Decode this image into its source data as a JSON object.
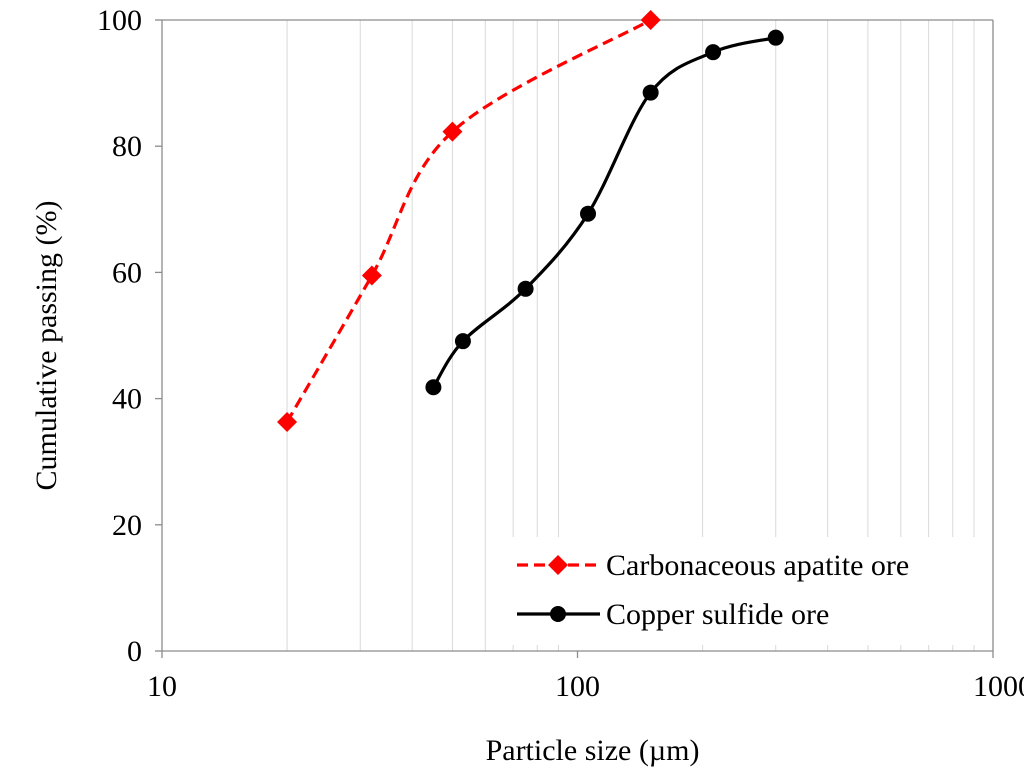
{
  "chart_data": {
    "type": "line",
    "xlabel": "Particle size (µm)",
    "ylabel": "Cumulative passing (%)",
    "xscale": "log",
    "xlim": [
      10,
      1000
    ],
    "ylim": [
      0,
      100
    ],
    "xticks": [
      "10",
      "100",
      "1000"
    ],
    "yticks": [
      "0",
      "20",
      "40",
      "60",
      "80",
      "100"
    ],
    "grid": "vertical minor gridlines",
    "legend_position": "bottom-right",
    "series": [
      {
        "name": "Carbonaceous apatite ore",
        "color": "#ff0000",
        "line_style": "dashed",
        "marker": "diamond",
        "x": [
          20,
          32,
          50,
          150
        ],
        "y": [
          36.3,
          59.5,
          82.3,
          100
        ]
      },
      {
        "name": "Copper sulfide ore",
        "color": "#000000",
        "line_style": "solid",
        "marker": "circle",
        "x": [
          45,
          53,
          75,
          106,
          150,
          212,
          300
        ],
        "y": [
          41.8,
          49.1,
          57.4,
          69.3,
          88.5,
          94.9,
          97.2
        ]
      }
    ]
  }
}
